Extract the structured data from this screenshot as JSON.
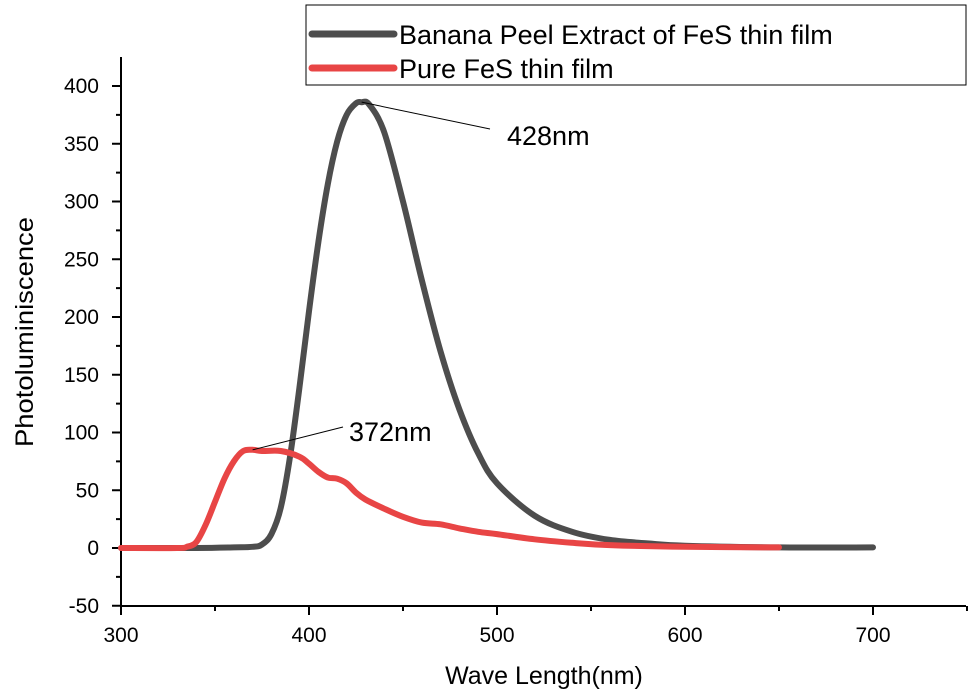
{
  "chart_data": {
    "type": "line",
    "title": "",
    "xlabel": "Wave Length(nm)",
    "ylabel": "Photoluminiscence",
    "xlim": [
      300,
      750
    ],
    "ylim": [
      -50,
      420
    ],
    "xticks": [
      300,
      400,
      500,
      600,
      700
    ],
    "yticks": [
      -50,
      0,
      50,
      100,
      150,
      200,
      250,
      300,
      350,
      400
    ],
    "grid": false,
    "legend_position": "top-right",
    "series": [
      {
        "name": "Banana Peel Extract of FeS thin film",
        "color": "#4d4d4d",
        "x": [
          300,
          340,
          360,
          370,
          375,
          380,
          385,
          390,
          395,
          400,
          405,
          410,
          415,
          420,
          425,
          428,
          432,
          440,
          450,
          460,
          470,
          480,
          490,
          500,
          520,
          540,
          560,
          580,
          600,
          650,
          700
        ],
        "y": [
          0,
          0,
          0.5,
          1,
          3,
          12,
          35,
          80,
          140,
          205,
          265,
          315,
          352,
          375,
          385,
          386,
          384,
          360,
          300,
          232,
          170,
          120,
          82,
          56,
          28,
          14,
          7,
          4,
          2,
          0.5,
          0.5
        ]
      },
      {
        "name": "Pure FeS thin film",
        "color": "#e84545",
        "x": [
          300,
          330,
          335,
          340,
          345,
          350,
          355,
          360,
          365,
          370,
          375,
          385,
          395,
          400,
          405,
          410,
          415,
          420,
          425,
          430,
          440,
          450,
          460,
          470,
          480,
          490,
          500,
          520,
          540,
          560,
          600,
          650
        ],
        "y": [
          0,
          0,
          1,
          5,
          20,
          40,
          60,
          75,
          84,
          85,
          84,
          84,
          79,
          73,
          66,
          61,
          60,
          56,
          48,
          42,
          34,
          27,
          22,
          20.5,
          17,
          14,
          12,
          7.5,
          4.5,
          2.5,
          1,
          0.5
        ]
      }
    ],
    "annotations": [
      {
        "text": "428nm",
        "x": 428,
        "y": 386
      },
      {
        "text": "372nm",
        "x": 370,
        "y": 85
      }
    ]
  }
}
